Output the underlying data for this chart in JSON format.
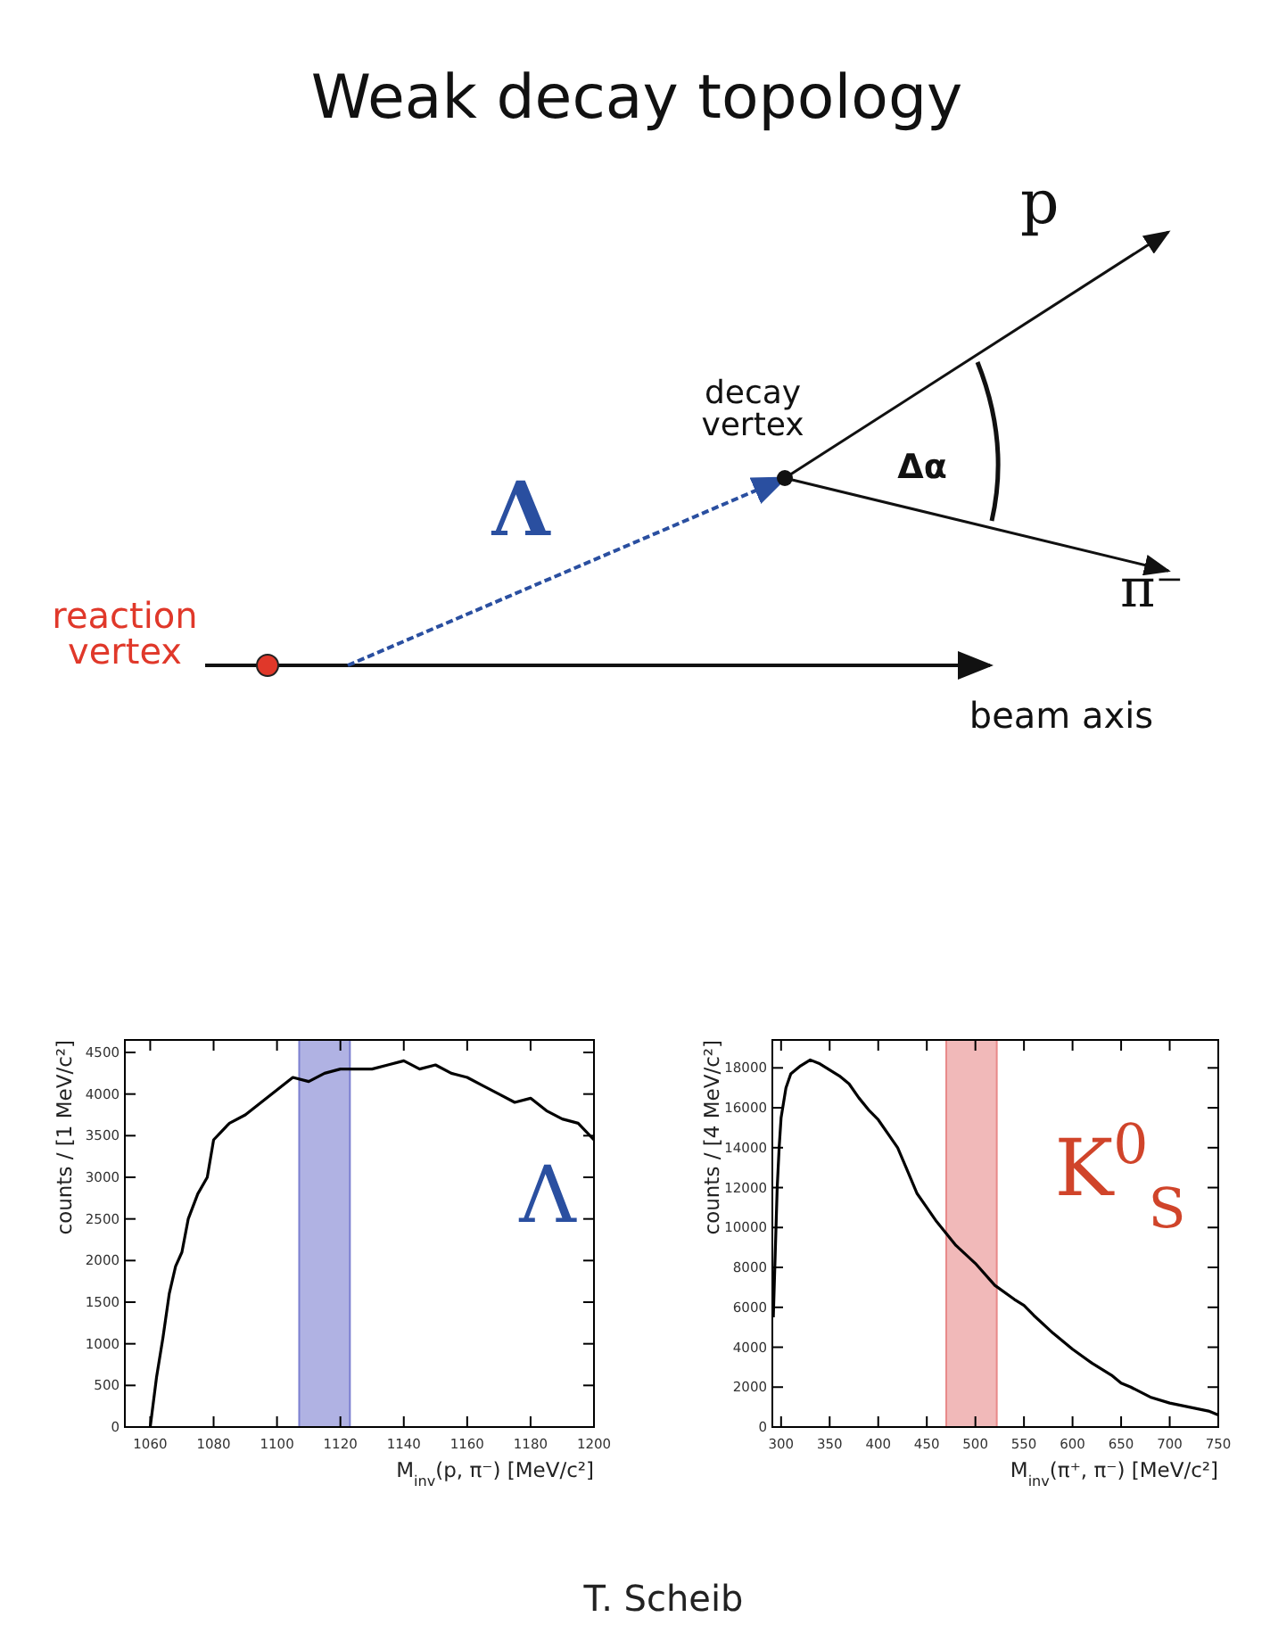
{
  "chart_data": [
    {
      "type": "other",
      "title": "Weak decay topology",
      "annotations": [
        "p",
        "π⁻",
        "decay vertex",
        "Δα",
        "Λ",
        "reaction vertex",
        "beam axis",
        "T. Scheib"
      ]
    },
    {
      "type": "line",
      "xlabel": "M$_{inv}$(p, π⁻) [MeV/c²]",
      "ylabel": "counts / [1 MeV/c²]",
      "xlim": [
        1052,
        1200
      ],
      "xticks": [
        1060,
        1080,
        1100,
        1120,
        1140,
        1160,
        1180,
        1200
      ],
      "ylim": [
        0,
        4650
      ],
      "yticks": [
        0,
        500,
        1000,
        1500,
        2000,
        2500,
        3000,
        3500,
        4000,
        4500
      ],
      "x": [
        1060,
        1062,
        1064,
        1066,
        1068,
        1070,
        1072,
        1075,
        1078,
        1080,
        1085,
        1090,
        1095,
        1100,
        1105,
        1110,
        1115,
        1120,
        1125,
        1130,
        1135,
        1140,
        1145,
        1150,
        1155,
        1160,
        1165,
        1170,
        1175,
        1180,
        1185,
        1190,
        1195,
        1200
      ],
      "series": [
        {
          "color": "#000000",
          "values": [
            0,
            600,
            1070,
            1600,
            1930,
            2100,
            2500,
            2800,
            3000,
            3450,
            3650,
            3750,
            3900,
            4050,
            4200,
            4150,
            4250,
            4300,
            4300,
            4300,
            4350,
            4400,
            4300,
            4350,
            4250,
            4200,
            4100,
            4000,
            3900,
            3950,
            3800,
            3700,
            3650,
            3450
          ]
        }
      ],
      "bands": [
        {
          "axis": "x",
          "from": 1107,
          "to": 1123,
          "color": "#7b7fd0"
        }
      ],
      "annotations": [
        "Λ"
      ]
    },
    {
      "type": "line",
      "xlabel": "M$_{inv}$(π⁺, π⁻) [MeV/c²]",
      "ylabel": "counts / [4 MeV/c²]",
      "xlim": [
        291,
        750
      ],
      "xticks": [
        300,
        350,
        400,
        450,
        500,
        550,
        600,
        650,
        700,
        750
      ],
      "ylim": [
        0,
        19400
      ],
      "yticks": [
        0,
        2000,
        4000,
        6000,
        8000,
        10000,
        12000,
        14000,
        16000,
        18000
      ],
      "x": [
        292,
        296,
        298,
        300,
        305,
        310,
        320,
        330,
        340,
        350,
        360,
        370,
        380,
        390,
        400,
        420,
        440,
        450,
        460,
        470,
        480,
        500,
        520,
        540,
        550,
        560,
        580,
        600,
        620,
        640,
        650,
        660,
        680,
        700,
        720,
        740,
        750
      ],
      "series": [
        {
          "color": "#000000",
          "values": [
            5500,
            12000,
            14000,
            15500,
            17000,
            17700,
            18100,
            18400,
            18200,
            17900,
            17600,
            17200,
            16500,
            15900,
            15400,
            14000,
            11700,
            11000,
            10300,
            9700,
            9100,
            8200,
            7100,
            6400,
            6100,
            5600,
            4700,
            3900,
            3200,
            2600,
            2200,
            2000,
            1500,
            1200,
            1000,
            800,
            600
          ]
        }
      ],
      "bands": [
        {
          "axis": "x",
          "from": 470,
          "to": 522,
          "color": "#e88a8a"
        }
      ],
      "annotations": [
        "K$^{0}$$_{S}$"
      ]
    }
  ]
}
